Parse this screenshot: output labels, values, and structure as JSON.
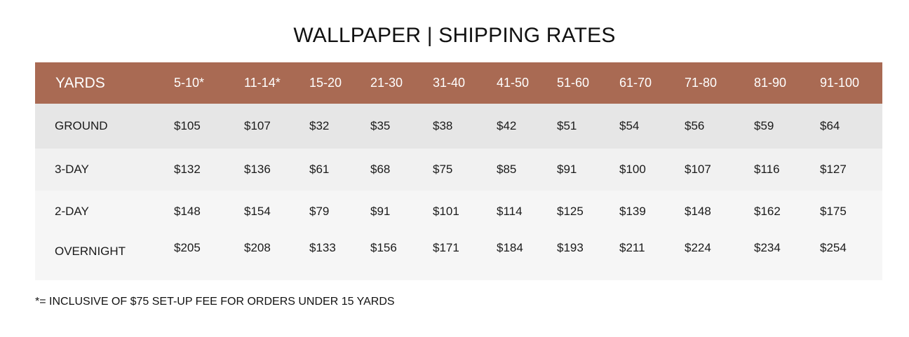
{
  "title": "WALLPAPER | SHIPPING RATES",
  "table": {
    "header_label": "YARDS",
    "columns": [
      "5-10*",
      "11-14*",
      "15-20",
      "21-30",
      "31-40",
      "41-50",
      "51-60",
      "61-70",
      "71-80",
      "81-90",
      "91-100"
    ],
    "rows": [
      {
        "label": "GROUND",
        "values": [
          "$105",
          "$107",
          "$32",
          "$35",
          "$38",
          "$42",
          "$51",
          "$54",
          "$56",
          "$59",
          "$64"
        ]
      },
      {
        "label": "3-DAY",
        "values": [
          "$132",
          "$136",
          "$61",
          "$68",
          "$75",
          "$85",
          "$91",
          "$100",
          "$107",
          "$116",
          "$127"
        ]
      },
      {
        "label": "2-DAY",
        "values": [
          "$148",
          "$154",
          "$79",
          "$91",
          "$101",
          "$114",
          "$125",
          "$139",
          "$148",
          "$162",
          "$175"
        ]
      },
      {
        "label": "OVERNIGHT",
        "values": [
          "$205",
          "$208",
          "$133",
          "$156",
          "$171",
          "$184",
          "$193",
          "$211",
          "$224",
          "$234",
          "$254"
        ]
      }
    ]
  },
  "footnote": "*= INCLUSIVE OF $75 SET-UP FEE FOR ORDERS UNDER 15 YARDS",
  "colors": {
    "header_background": "#a96a53",
    "header_text": "#ffffff",
    "ground_row": "#e6e6e6",
    "other_rows": "#f4f4f4"
  }
}
